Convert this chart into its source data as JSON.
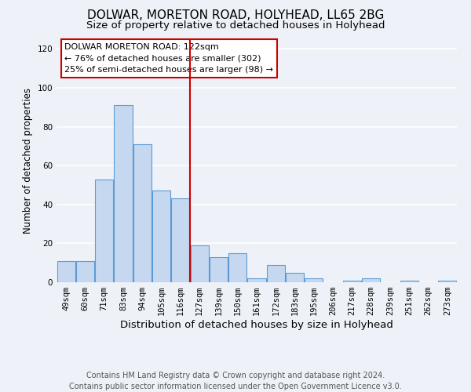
{
  "title": "DOLWAR, MORETON ROAD, HOLYHEAD, LL65 2BG",
  "subtitle": "Size of property relative to detached houses in Holyhead",
  "xlabel": "Distribution of detached houses by size in Holyhead",
  "ylabel": "Number of detached properties",
  "categories": [
    "49sqm",
    "60sqm",
    "71sqm",
    "83sqm",
    "94sqm",
    "105sqm",
    "116sqm",
    "127sqm",
    "139sqm",
    "150sqm",
    "161sqm",
    "172sqm",
    "183sqm",
    "195sqm",
    "206sqm",
    "217sqm",
    "228sqm",
    "239sqm",
    "251sqm",
    "262sqm",
    "273sqm"
  ],
  "values": [
    11,
    11,
    53,
    91,
    71,
    47,
    43,
    19,
    13,
    15,
    2,
    9,
    5,
    2,
    0,
    1,
    2,
    0,
    1,
    0,
    1
  ],
  "bar_color": "#c5d8f0",
  "bar_edge_color": "#5b9bd5",
  "vline_x_index": 6.5,
  "vline_color": "#cc0000",
  "annotation_title": "DOLWAR MORETON ROAD: 122sqm",
  "annotation_line1": "← 76% of detached houses are smaller (302)",
  "annotation_line2": "25% of semi-detached houses are larger (98) →",
  "annotation_box_color": "#ffffff",
  "annotation_box_edge_color": "#cc0000",
  "ylim": [
    0,
    125
  ],
  "yticks": [
    0,
    20,
    40,
    60,
    80,
    100,
    120
  ],
  "footer1": "Contains HM Land Registry data © Crown copyright and database right 2024.",
  "footer2": "Contains public sector information licensed under the Open Government Licence v3.0.",
  "bg_color": "#eef2f8",
  "grid_color": "#ffffff",
  "title_fontsize": 11,
  "subtitle_fontsize": 9.5,
  "xlabel_fontsize": 9.5,
  "ylabel_fontsize": 8.5,
  "tick_fontsize": 7.5,
  "ann_fontsize": 8,
  "footer_fontsize": 7
}
